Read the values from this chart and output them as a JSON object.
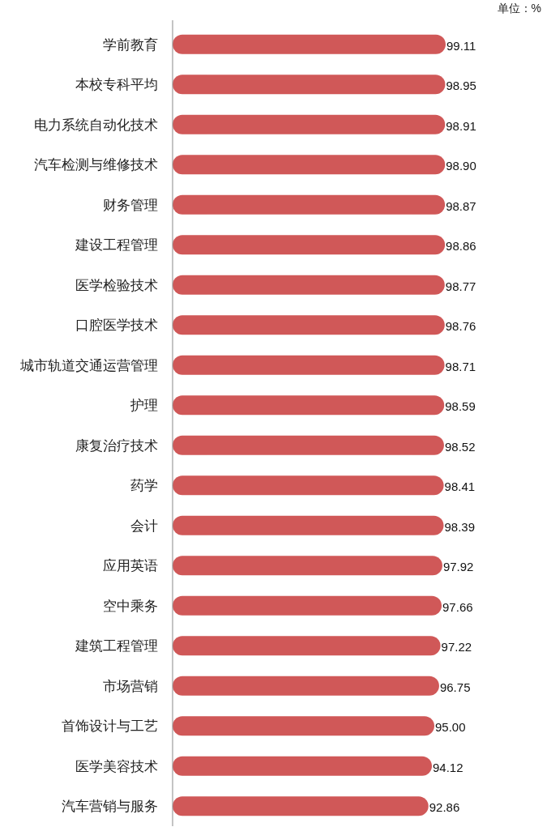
{
  "chart_data": {
    "type": "bar",
    "orientation": "horizontal",
    "categories": [
      "学前教育",
      "本校专科平均",
      "电力系统自动化技术",
      "汽车检测与维修技术",
      "财务管理",
      "建设工程管理",
      "医学检验技术",
      "口腔医学技术",
      "城市轨道交通运营管理",
      "护理",
      "康复治疗技术",
      "药学",
      "会计",
      "应用英语",
      "空中乘务",
      "建筑工程管理",
      "市场营销",
      "首饰设计与工艺",
      "医学美容技术",
      "汽车营销与服务"
    ],
    "values": [
      99.11,
      98.95,
      98.91,
      98.9,
      98.87,
      98.86,
      98.77,
      98.76,
      98.71,
      98.59,
      98.52,
      98.41,
      98.39,
      97.92,
      97.66,
      97.22,
      96.75,
      95.0,
      94.12,
      92.86
    ],
    "value_labels": [
      "99.11",
      "98.95",
      "98.91",
      "98.90",
      "98.87",
      "98.86",
      "98.77",
      "98.76",
      "98.71",
      "98.59",
      "98.52",
      "98.41",
      "98.39",
      "97.92",
      "97.66",
      "97.22",
      "96.75",
      "95.00",
      "94.12",
      "92.86"
    ],
    "color": "#d05858",
    "xlim": [
      0,
      100
    ],
    "annotations": [
      "单位：%"
    ]
  }
}
